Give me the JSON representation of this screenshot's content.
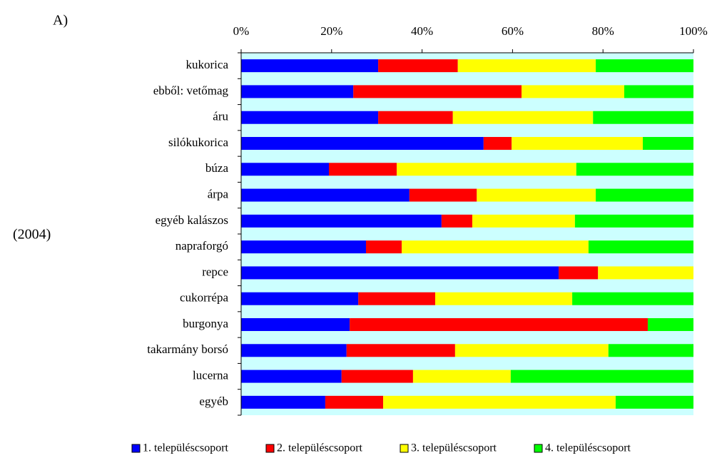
{
  "chart_data": {
    "type": "stacked_bar_horizontal",
    "annotations": [
      "A)",
      "(2004)"
    ],
    "categories": [
      "kukorica",
      "ebből: vetőmag",
      "áru",
      "silókukorica",
      "búza",
      "árpa",
      "egyéb kalászos",
      "napraforgó",
      "repce",
      "cukorrépa",
      "burgonya",
      "takarmány borsó",
      "lucerna",
      "egyéb"
    ],
    "series": [
      {
        "name": "1. településcsoport",
        "color": "#0000ff",
        "values": [
          30.3,
          24.8,
          30.3,
          53.6,
          19.4,
          37.2,
          44.3,
          27.6,
          70.2,
          25.9,
          24.0,
          23.3,
          22.2,
          18.6
        ]
      },
      {
        "name": "2. településcsoport",
        "color": "#ff0000",
        "values": [
          17.6,
          37.2,
          16.5,
          6.2,
          15.0,
          14.9,
          6.8,
          7.9,
          8.7,
          17.0,
          65.9,
          24.0,
          15.8,
          12.8
        ]
      },
      {
        "name": "3. településcsoport",
        "color": "#ffff00",
        "values": [
          30.5,
          22.7,
          31.0,
          29.0,
          39.7,
          26.3,
          22.7,
          41.3,
          21.1,
          30.3,
          0,
          33.9,
          21.6,
          51.4
        ]
      },
      {
        "name": "4. településcsoport",
        "color": "#00ff00",
        "values": [
          21.6,
          15.3,
          22.2,
          11.2,
          25.9,
          21.6,
          26.2,
          23.2,
          0,
          26.8,
          10.1,
          18.8,
          40.4,
          17.2
        ]
      }
    ],
    "xlim": [
      0,
      100
    ],
    "xticks": [
      {
        "value": 0,
        "label": "0%"
      },
      {
        "value": 20,
        "label": "20%"
      },
      {
        "value": 40,
        "label": "40%"
      },
      {
        "value": 60,
        "label": "60%"
      },
      {
        "value": 80,
        "label": "80%"
      },
      {
        "value": 100,
        "label": "100%"
      }
    ],
    "legend": "bottom"
  }
}
